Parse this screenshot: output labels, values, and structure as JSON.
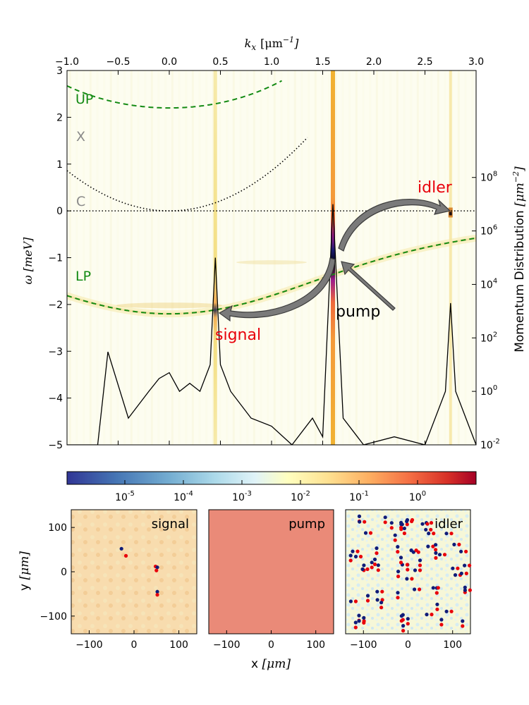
{
  "chart_data": [
    {
      "type": "heatmap",
      "title": "",
      "xlabel": "k_x [μm⁻¹]",
      "xlabel_parts": {
        "k": "k",
        "sub": "x",
        "unit": "[μm",
        "exp": "−1",
        "close": "]"
      },
      "ylabel": "ω [meV]",
      "ylabel2": "Momentum Distribution [μm⁻²]",
      "ylabel2_parts": {
        "text": "Momentum Distribution ",
        "unit": "[μm",
        "exp": "−2",
        "close": "]"
      },
      "xlim": [
        -1.0,
        3.0
      ],
      "ylim": [
        -5,
        3
      ],
      "x_ticks": [
        "−1.0",
        "−0.5",
        "0.0",
        "0.5",
        "1.0",
        "1.5",
        "2.0",
        "2.5",
        "3.0"
      ],
      "x_tick_values": [
        -1.0,
        -0.5,
        0.0,
        0.5,
        1.0,
        1.5,
        2.0,
        2.5,
        3.0
      ],
      "y_ticks": [
        "−5",
        "−4",
        "−3",
        "−2",
        "−1",
        "0",
        "1",
        "2",
        "3"
      ],
      "y_tick_values": [
        -5,
        -4,
        -3,
        -2,
        -1,
        0,
        1,
        2,
        3
      ],
      "right_axis": {
        "scale": "log",
        "ylim": [
          0.01,
          1000000000000
        ],
        "ticks": [
          {
            "value": 0.01,
            "base": "10",
            "exp": "-2"
          },
          {
            "value": 1,
            "base": "10",
            "exp": "0"
          },
          {
            "value": 100,
            "base": "10",
            "exp": "2"
          },
          {
            "value": 10000,
            "base": "10",
            "exp": "4"
          },
          {
            "value": 1000000,
            "base": "10",
            "exp": "6"
          },
          {
            "value": 100000000,
            "base": "10",
            "exp": "8"
          }
        ]
      },
      "dispersion_curves": [
        {
          "name": "UP",
          "style": "dashed",
          "color": "#138a13"
        },
        {
          "name": "X",
          "style": "dotted",
          "color": "#000000"
        },
        {
          "name": "C",
          "style": "dotted",
          "color": "#000000"
        },
        {
          "name": "LP",
          "style": "dashed",
          "color": "#138a13"
        }
      ],
      "branch_labels": [
        {
          "text": "UP",
          "color": "#138a13"
        },
        {
          "text": "X",
          "color": "#8a8a8a"
        },
        {
          "text": "C",
          "color": "#8a8a8a"
        },
        {
          "text": "LP",
          "color": "#138a13"
        }
      ],
      "annotations": [
        {
          "text": "idler",
          "color": "#e8000b"
        },
        {
          "text": "pump",
          "color": "#000000"
        },
        {
          "text": "signal",
          "color": "#e8000b"
        }
      ],
      "states": [
        {
          "name": "signal",
          "kx": 0.45,
          "omega": -1.9
        },
        {
          "name": "pump",
          "kx": 1.6,
          "omega": -0.95
        },
        {
          "name": "idler",
          "kx": 2.75,
          "omega": -0.05
        }
      ],
      "momentum_distribution": {
        "kx": [
          -1.0,
          -0.7,
          -0.6,
          -0.4,
          -0.2,
          -0.1,
          0.0,
          0.1,
          0.2,
          0.3,
          0.4,
          0.45,
          0.5,
          0.6,
          0.8,
          1.0,
          1.2,
          1.4,
          1.5,
          1.6,
          1.7,
          1.9,
          2.2,
          2.5,
          2.7,
          2.75,
          2.8,
          3.0
        ],
        "value": [
          0.01,
          0.01,
          30,
          0.1,
          1,
          3,
          5,
          1,
          2,
          1,
          10,
          100000,
          10,
          1,
          0.1,
          0.05,
          0.01,
          0.1,
          0.02,
          10000000,
          0.1,
          0.01,
          0.02,
          0.01,
          1,
          2000,
          1,
          0.01
        ]
      }
    },
    {
      "type": "colorbar",
      "scale": "log",
      "ticks": [
        {
          "base": "10",
          "exp": "-5"
        },
        {
          "base": "10",
          "exp": "-4"
        },
        {
          "base": "10",
          "exp": "-3"
        },
        {
          "base": "10",
          "exp": "-2"
        },
        {
          "base": "10",
          "exp": "-1"
        },
        {
          "base": "10",
          "exp": "0"
        }
      ]
    },
    {
      "type": "heatmap",
      "title": "signal",
      "xlabel": "",
      "ylabel": "y [μm]",
      "ylabel_parts": {
        "text": "y ",
        "unit": "[μm]"
      },
      "xlim": [
        -140,
        140
      ],
      "ylim": [
        -140,
        140
      ],
      "x_ticks": [
        "−100",
        "0",
        "100"
      ],
      "y_ticks": [
        "100",
        "0",
        "−100"
      ],
      "vortices": [
        {
          "x": -28,
          "y": 52,
          "sign": "-"
        },
        {
          "x": -18,
          "y": 36,
          "sign": "+"
        },
        {
          "x": 48,
          "y": 12,
          "sign": "+"
        },
        {
          "x": 52,
          "y": 10,
          "sign": "-"
        },
        {
          "x": 50,
          "y": 3,
          "sign": "+"
        },
        {
          "x": 52,
          "y": -45,
          "sign": "-"
        },
        {
          "x": 52,
          "y": -52,
          "sign": "+"
        }
      ]
    },
    {
      "type": "heatmap",
      "title": "pump",
      "xlabel": "x [μm]",
      "xlabel_parts": {
        "text": "x ",
        "unit": "[μm]"
      },
      "ylabel": "",
      "xlim": [
        -140,
        140
      ],
      "ylim": [
        -140,
        140
      ],
      "x_ticks": [
        "−100",
        "0",
        "100"
      ]
    },
    {
      "type": "heatmap",
      "title": "idler",
      "xlabel": "",
      "ylabel": "",
      "xlim": [
        -140,
        140
      ],
      "ylim": [
        -140,
        140
      ],
      "x_ticks": [
        "−100",
        "0",
        "100"
      ]
    }
  ],
  "colors": {
    "up_lp_curves": "#138a13",
    "exciton_photon_curves": "#000000",
    "annotation_red": "#e8000b",
    "arrow_fill": "#7a7a7a",
    "vortex_positive": "#e8000b",
    "vortex_negative": "#101c78",
    "pump_map": "#ea8a78"
  }
}
